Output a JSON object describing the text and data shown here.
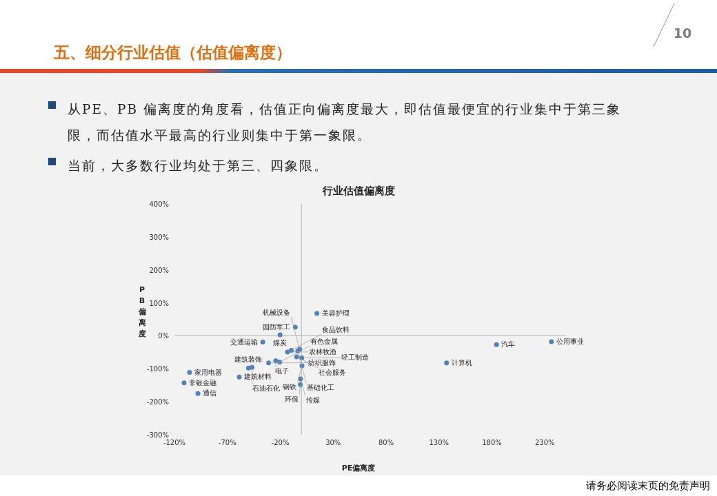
{
  "chart_data": {
    "type": "scatter",
    "title": "行业估值偏离度",
    "xlabel": "PE偏离度",
    "ylabel": "PB偏离度",
    "xlim": [
      -120,
      250
    ],
    "ylim": [
      -300,
      400
    ],
    "xticks": [
      {
        "value": -120,
        "label": "-120%"
      },
      {
        "value": -70,
        "label": "-70%"
      },
      {
        "value": -20,
        "label": "-20%"
      },
      {
        "value": 30,
        "label": "30%"
      },
      {
        "value": 80,
        "label": "80%"
      },
      {
        "value": 130,
        "label": "130%"
      },
      {
        "value": 180,
        "label": "180%"
      },
      {
        "value": 230,
        "label": "230%"
      }
    ],
    "yticks": [
      {
        "value": -300,
        "label": "-300%"
      },
      {
        "value": -200,
        "label": "-200%"
      },
      {
        "value": -100,
        "label": "-100%"
      },
      {
        "value": 0,
        "label": "0%"
      },
      {
        "value": 100,
        "label": "100%"
      },
      {
        "value": 200,
        "label": "200%"
      },
      {
        "value": 300,
        "label": "300%"
      },
      {
        "value": 400,
        "label": "400%"
      }
    ],
    "marker": "circle",
    "series": [
      {
        "color": "#4f81bd",
        "x": [
          14.6,
          -5.8,
          -20.2,
          -36.5,
          -105.7,
          -110.9,
          -97.8,
          -58.7,
          -50,
          -46.7,
          -31,
          -24.3,
          -20.6,
          -13.2,
          -9.5,
          -3.4,
          -1.7,
          -4.5,
          0.3,
          0.5,
          -0.8,
          -1,
          137.1,
          184.3,
          236.2
        ],
        "values": [
          68,
          26,
          3,
          -19,
          -111,
          -143,
          -175,
          -125,
          -98,
          -96,
          -82,
          -76,
          -80,
          -49,
          -44,
          -46,
          -41,
          -64,
          -67,
          -91,
          -131,
          -148,
          -82,
          -27,
          -18
        ]
      }
    ],
    "annotations": [
      "10",
      "五、细分行业估值（估值偏离度）",
      "从PE、PB 偏离度的角度看，估值正向偏离度最大，即估值最便宜的行业集中于第三象限，而估值水平最高的行业则集中于第一象限。",
      "当前，大多数行业均处于第三、四象限。",
      "请务必阅读末页的免责声明",
      {
        "text": "美容护理",
        "x": 14.6,
        "y": 68
      },
      {
        "text": "国防军工",
        "x": -5.8,
        "y": 26
      },
      {
        "text": "煤炭",
        "x": -20.2,
        "y": 3
      },
      {
        "text": "交通运输",
        "x": -36.5,
        "y": -19
      },
      {
        "text": "家用电器",
        "x": -105.7,
        "y": -111
      },
      {
        "text": "非银金融",
        "x": -110.9,
        "y": -143
      },
      {
        "text": "通信",
        "x": -97.8,
        "y": -175
      },
      {
        "text": "建筑材料",
        "x": -58.7,
        "y": -125
      },
      {
        "text": "建筑装饰",
        "x": -50,
        "y": -98
      },
      {
        "text": "石油石化",
        "x": -46.7,
        "y": -96
      },
      {
        "text": "纺织服饰",
        "x": -31,
        "y": -82
      },
      {
        "text": "电子",
        "x": -24.3,
        "y": -76
      },
      {
        "text": "有色金属",
        "x": -20.6,
        "y": -80
      },
      {
        "text": "农林牧渔",
        "x": -13.2,
        "y": -49
      },
      {
        "text": "食品饮料",
        "x": -9.5,
        "y": -44
      },
      {
        "text": "基础化工",
        "x": -3.4,
        "y": -46
      },
      {
        "text": "机械设备",
        "x": -1.7,
        "y": -41
      },
      {
        "text": "社会服务",
        "x": -4.5,
        "y": -64
      },
      {
        "text": "轻工制造",
        "x": 0.3,
        "y": -67
      },
      {
        "text": "钢铁",
        "x": 0.5,
        "y": -91
      },
      {
        "text": "传媒",
        "x": -0.8,
        "y": -131
      },
      {
        "text": "环保",
        "x": -1,
        "y": -148
      },
      {
        "text": "计算机",
        "x": 137.1,
        "y": -82
      },
      {
        "text": "汽车",
        "x": 184.3,
        "y": -27
      },
      {
        "text": "公用事业",
        "x": 236.2,
        "y": -18
      }
    ]
  }
}
